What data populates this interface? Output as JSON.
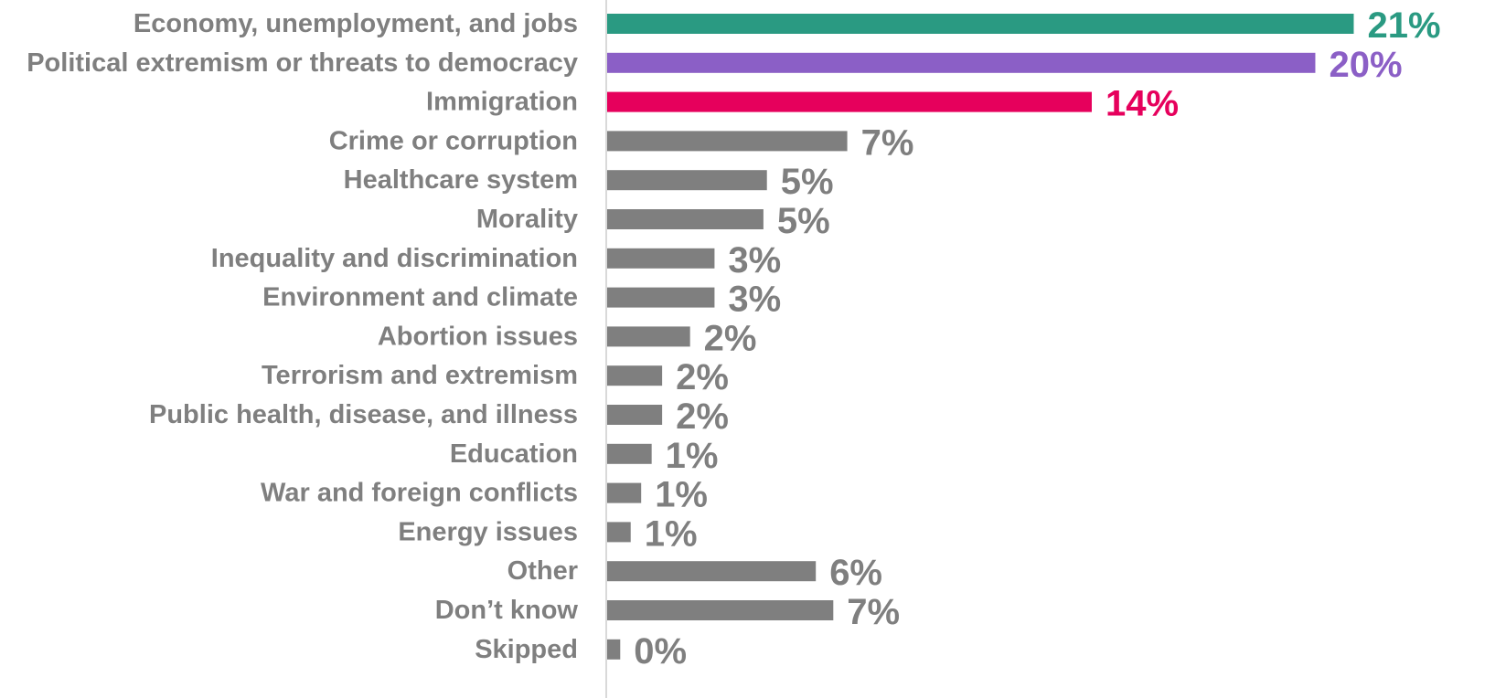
{
  "chart_data": {
    "type": "bar",
    "orientation": "horizontal",
    "categories": [
      "Economy, unemployment, and jobs",
      "Political extremism or threats to democracy",
      "Immigration",
      "Crime or corruption",
      "Healthcare system",
      "Morality",
      "Inequality and discrimination",
      "Environment and climate",
      "Abortion issues",
      "Terrorism and extremism",
      "Public health, disease, and illness",
      "Education",
      "War and foreign conflicts",
      "Energy issues",
      "Other",
      "Don’t know",
      "Skipped"
    ],
    "values": [
      21.4,
      20.3,
      13.9,
      6.9,
      4.6,
      4.5,
      3.1,
      3.1,
      2.4,
      1.6,
      1.6,
      1.3,
      1.0,
      0.7,
      6.0,
      6.5,
      0.4
    ],
    "data_labels": [
      "21%",
      "20%",
      "14%",
      "7%",
      "5%",
      "5%",
      "3%",
      "3%",
      "2%",
      "2%",
      "2%",
      "1%",
      "1%",
      "1%",
      "6%",
      "7%",
      "0%"
    ],
    "colors": [
      "#2a9a82",
      "#8b5fc6",
      "#e6005c",
      "#7f7f7f",
      "#7f7f7f",
      "#7f7f7f",
      "#7f7f7f",
      "#7f7f7f",
      "#7f7f7f",
      "#7f7f7f",
      "#7f7f7f",
      "#7f7f7f",
      "#7f7f7f",
      "#7f7f7f",
      "#7f7f7f",
      "#7f7f7f",
      "#7f7f7f"
    ],
    "xlim": [
      0,
      22
    ],
    "title": "",
    "xlabel": "",
    "ylabel": "",
    "grid": false,
    "legend": "none"
  }
}
